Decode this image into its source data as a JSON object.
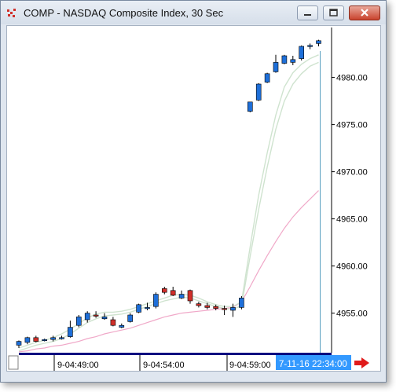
{
  "window": {
    "title": "COMP - NASDAQ Composite Index, 30 Sec"
  },
  "colors": {
    "up": "#1e6fd9",
    "down": "#d0302a",
    "ma_fast": "#cfe3cf",
    "ma_slow": "#f0a8c8",
    "cursor_line": "#5aa0c0",
    "time_bar": "#000080",
    "time_highlight": "#3399ff"
  },
  "chart_data": {
    "type": "candlestick",
    "y_ticks": [
      "4980.00",
      "4975.00",
      "4970.00",
      "4965.00",
      "4960.00",
      "4955.00"
    ],
    "ylim": [
      4950.8,
      4985.3
    ],
    "x_labels": [
      "9-04:49:00",
      "9-04:54:00",
      "9-04:59:00"
    ],
    "cursor_label": "7-11-16 22:34:00",
    "candles": [
      {
        "o": 4951.6,
        "h": 4952.1,
        "l": 4951.3,
        "c": 4952.0
      },
      {
        "o": 4951.9,
        "h": 4952.5,
        "l": 4951.7,
        "c": 4952.4
      },
      {
        "o": 4952.4,
        "h": 4952.6,
        "l": 4951.9,
        "c": 4952.0
      },
      {
        "o": 4952.2,
        "h": 4952.3,
        "l": 4952.0,
        "c": 4952.2
      },
      {
        "o": 4952.2,
        "h": 4952.6,
        "l": 4952.0,
        "c": 4952.4
      },
      {
        "o": 4952.3,
        "h": 4952.6,
        "l": 4952.2,
        "c": 4952.4
      },
      {
        "o": 4952.5,
        "h": 4954.2,
        "l": 4952.4,
        "c": 4953.5
      },
      {
        "o": 4953.7,
        "h": 4954.8,
        "l": 4953.5,
        "c": 4954.6
      },
      {
        "o": 4954.3,
        "h": 4955.2,
        "l": 4954.0,
        "c": 4955.0
      },
      {
        "o": 4954.8,
        "h": 4955.2,
        "l": 4954.5,
        "c": 4954.7
      },
      {
        "o": 4954.4,
        "h": 4955.0,
        "l": 4954.3,
        "c": 4954.6
      },
      {
        "o": 4954.3,
        "h": 4954.6,
        "l": 4953.6,
        "c": 4953.7
      },
      {
        "o": 4953.5,
        "h": 4953.9,
        "l": 4953.4,
        "c": 4953.7
      },
      {
        "o": 4954.1,
        "h": 4955.0,
        "l": 4954.0,
        "c": 4954.8
      },
      {
        "o": 4955.1,
        "h": 4956.0,
        "l": 4955.0,
        "c": 4955.9
      },
      {
        "o": 4955.5,
        "h": 4956.1,
        "l": 4955.3,
        "c": 4955.6
      },
      {
        "o": 4955.7,
        "h": 4957.2,
        "l": 4955.5,
        "c": 4957.0
      },
      {
        "o": 4957.6,
        "h": 4957.8,
        "l": 4957.0,
        "c": 4957.2
      },
      {
        "o": 4957.4,
        "h": 4957.8,
        "l": 4956.8,
        "c": 4956.9
      },
      {
        "o": 4956.6,
        "h": 4957.4,
        "l": 4956.5,
        "c": 4957.0
      },
      {
        "o": 4957.4,
        "h": 4957.5,
        "l": 4956.0,
        "c": 4956.3
      },
      {
        "o": 4956.0,
        "h": 4956.2,
        "l": 4955.6,
        "c": 4955.8
      },
      {
        "o": 4955.8,
        "h": 4956.1,
        "l": 4955.4,
        "c": 4955.6
      },
      {
        "o": 4955.7,
        "h": 4955.9,
        "l": 4955.3,
        "c": 4955.5
      },
      {
        "o": 4955.5,
        "h": 4955.8,
        "l": 4954.8,
        "c": 4955.4
      },
      {
        "o": 4955.3,
        "h": 4956.0,
        "l": 4954.6,
        "c": 4955.6
      },
      {
        "o": 4955.6,
        "h": 4956.8,
        "l": 4955.4,
        "c": 4956.6
      },
      {
        "o": 4976.4,
        "h": 4977.4,
        "l": 4976.3,
        "c": 4977.4
      },
      {
        "o": 4977.6,
        "h": 4979.4,
        "l": 4977.5,
        "c": 4979.3
      },
      {
        "o": 4979.5,
        "h": 4980.5,
        "l": 4979.4,
        "c": 4980.4
      },
      {
        "o": 4980.6,
        "h": 4982.4,
        "l": 4980.5,
        "c": 4981.6
      },
      {
        "o": 4981.5,
        "h": 4982.4,
        "l": 4981.4,
        "c": 4982.3
      },
      {
        "o": 4981.6,
        "h": 4982.3,
        "l": 4981.3,
        "c": 4981.9
      },
      {
        "o": 4982.0,
        "h": 4983.4,
        "l": 4981.8,
        "c": 4983.3
      },
      {
        "o": 4983.3,
        "h": 4983.6,
        "l": 4983.0,
        "c": 4983.4
      },
      {
        "o": 4983.6,
        "h": 4984.0,
        "l": 4983.3,
        "c": 4983.9
      }
    ],
    "ma_fast": [
      4951.3,
      4951.6,
      4951.9,
      4952.1,
      4952.4,
      4952.8,
      4953.3,
      4953.9,
      4954.5,
      4954.9,
      4955.1,
      4955.1,
      4955.2,
      4955.4,
      4955.7,
      4956.0,
      4956.3,
      4956.6,
      4956.9,
      4957.0,
      4956.9,
      4956.6,
      4956.2,
      4955.9,
      4955.7,
      4955.7,
      4956.2,
      4962.0,
      4967.5,
      4972.0,
      4976.0,
      4979.0,
      4980.5,
      4981.4,
      4982.0,
      4982.4
    ],
    "ma_mid": [
      4951.0,
      4951.3,
      4951.6,
      4951.8,
      4952.0,
      4952.3,
      4952.8,
      4953.4,
      4954.0,
      4954.4,
      4954.7,
      4954.8,
      4954.9,
      4955.1,
      4955.4,
      4955.7,
      4956.0,
      4956.3,
      4956.5,
      4956.7,
      4956.6,
      4956.3,
      4956.0,
      4955.7,
      4955.5,
      4955.4,
      4955.8,
      4961.0,
      4966.0,
      4970.5,
      4974.5,
      4977.5,
      4979.3,
      4980.4,
      4981.2,
      4981.6
    ],
    "ma_slow": [
      4950.9,
      4951.0,
      4951.2,
      4951.3,
      4951.5,
      4951.6,
      4951.8,
      4952.0,
      4952.3,
      4952.5,
      4952.8,
      4953.0,
      4953.2,
      4953.4,
      4953.7,
      4954.0,
      4954.3,
      4954.6,
      4954.8,
      4955.0,
      4955.1,
      4955.2,
      4955.3,
      4955.4,
      4955.5,
      4955.6,
      4956.2,
      4957.8,
      4959.5,
      4961.1,
      4962.6,
      4964.0,
      4965.2,
      4966.2,
      4967.1,
      4968.0
    ],
    "cursor_index": 35
  }
}
